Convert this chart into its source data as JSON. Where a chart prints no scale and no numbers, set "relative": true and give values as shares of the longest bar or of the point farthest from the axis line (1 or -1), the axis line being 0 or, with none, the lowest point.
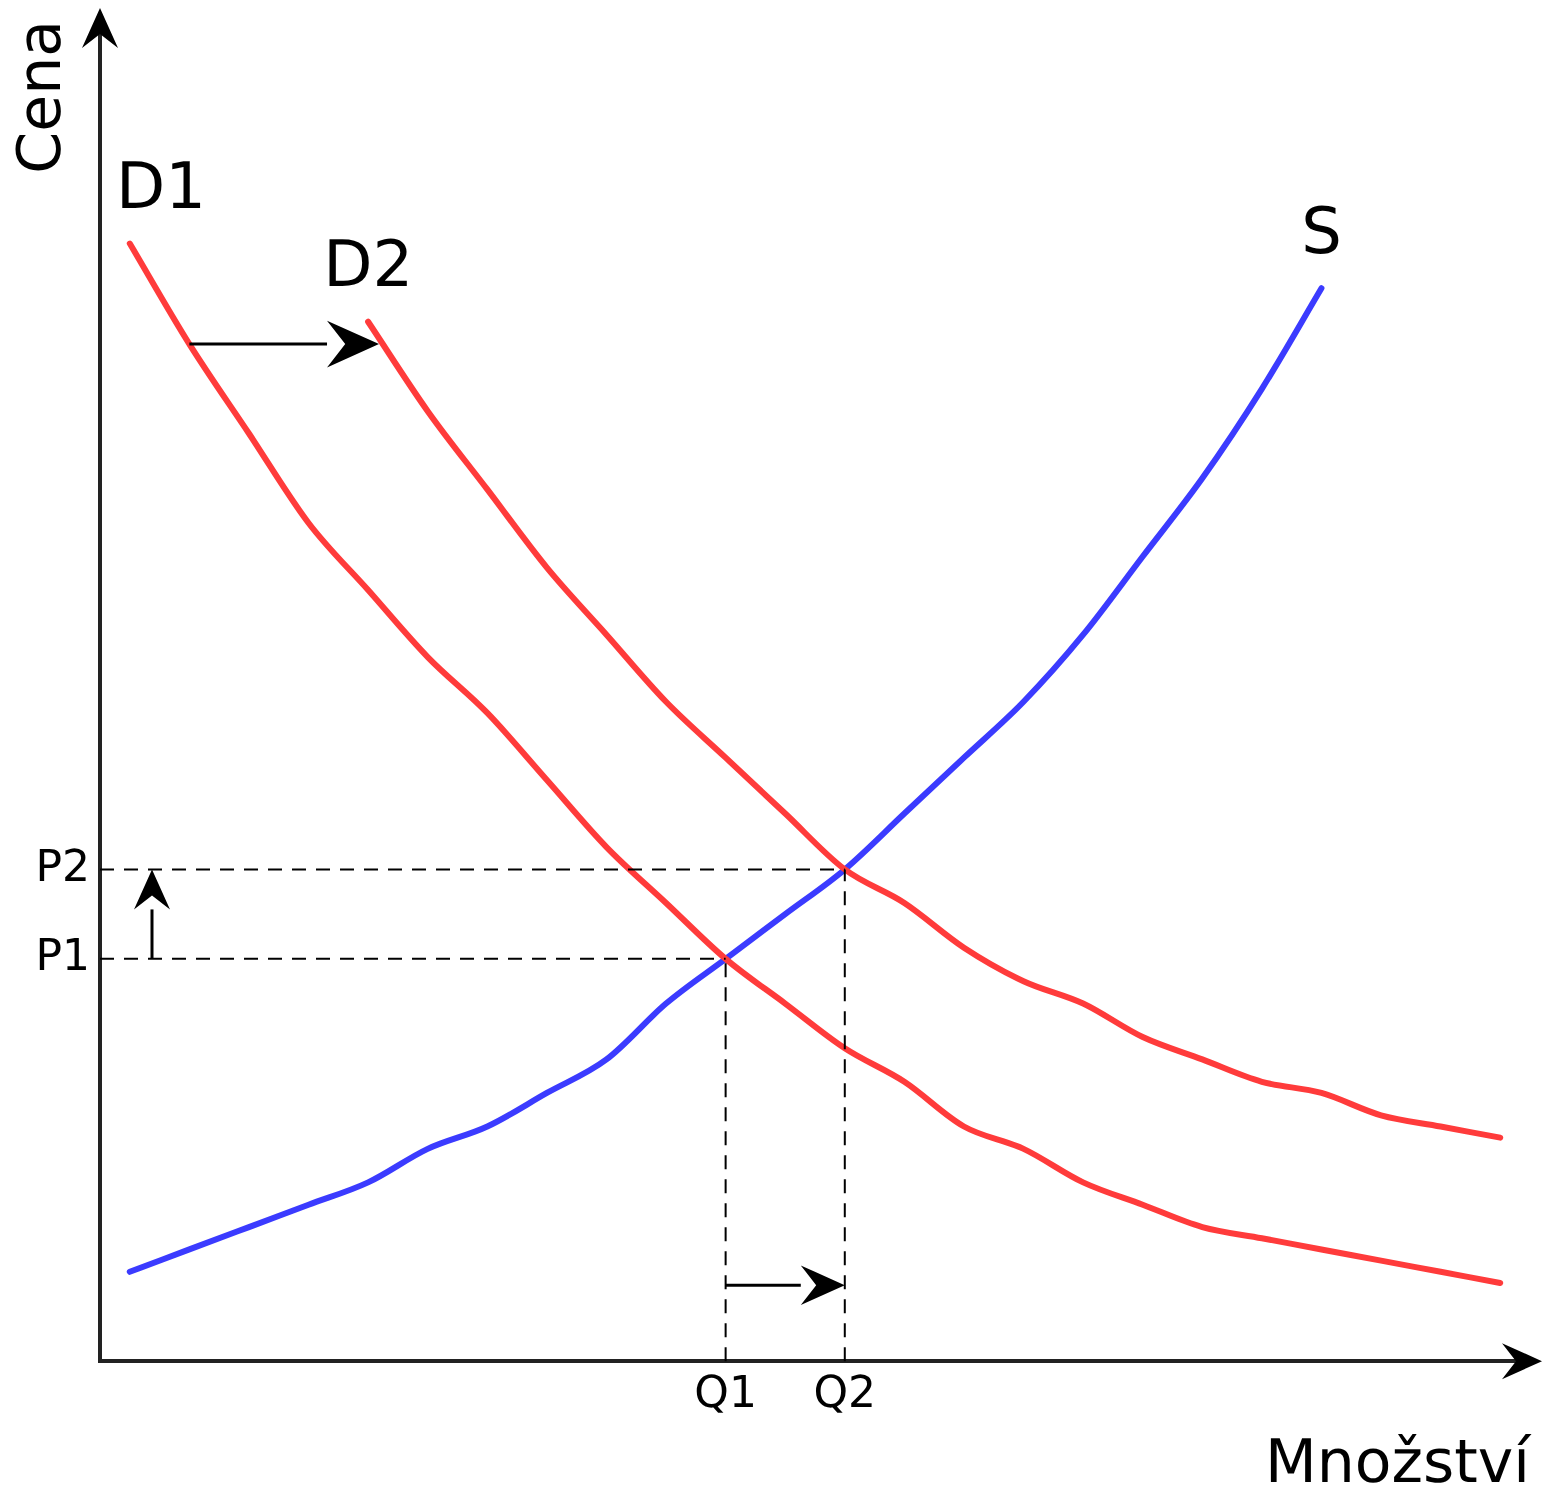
{
  "chart_data": {
    "type": "line",
    "xlabel": "Množství",
    "ylabel": "Cena",
    "relative": true,
    "marker": "none",
    "categories": [
      null,
      null,
      null,
      null,
      null,
      null,
      null,
      null,
      null,
      null,
      "Q1",
      null,
      "Q2",
      null,
      null,
      null,
      null,
      null,
      null,
      null,
      null,
      null,
      null,
      null
    ],
    "series": [
      {
        "name": "D1",
        "color": "#ff3b3b",
        "values": [
          1.0,
          0.91,
          0.83,
          0.75,
          0.69,
          0.63,
          0.58,
          0.52,
          0.46,
          0.41,
          0.36,
          0.32,
          0.28,
          0.25,
          0.21,
          0.19,
          0.16,
          0.14,
          0.12,
          0.11,
          0.1,
          0.09,
          0.08,
          0.07
        ]
      },
      {
        "name": "D2",
        "color": "#ff3b3b",
        "values": [
          null,
          null,
          null,
          null,
          0.93,
          0.85,
          0.78,
          0.71,
          0.65,
          0.59,
          0.54,
          0.49,
          0.44,
          0.41,
          0.37,
          0.34,
          0.32,
          0.29,
          0.27,
          0.25,
          0.24,
          0.22,
          0.21,
          0.2
        ]
      },
      {
        "name": "S",
        "color": "#3b3bff",
        "values": [
          0.08,
          0.1,
          0.12,
          0.14,
          0.16,
          0.19,
          0.21,
          0.24,
          0.27,
          0.32,
          0.36,
          0.4,
          0.44,
          0.49,
          0.54,
          0.59,
          0.65,
          0.72,
          0.79,
          0.87,
          0.96,
          null,
          null,
          null
        ]
      }
    ],
    "ref_lines": [
      {
        "axis": "y",
        "value": 0.36,
        "label": "P1",
        "color": "#000000",
        "line_style": "dashed"
      },
      {
        "axis": "y",
        "value": 0.44,
        "label": "P2",
        "color": "#000000",
        "line_style": "dashed"
      },
      {
        "axis": "x",
        "value": "Q1",
        "color": "#000000",
        "line_style": "dashed"
      },
      {
        "axis": "x",
        "value": "Q2",
        "color": "#000000",
        "line_style": "dashed"
      }
    ]
  }
}
